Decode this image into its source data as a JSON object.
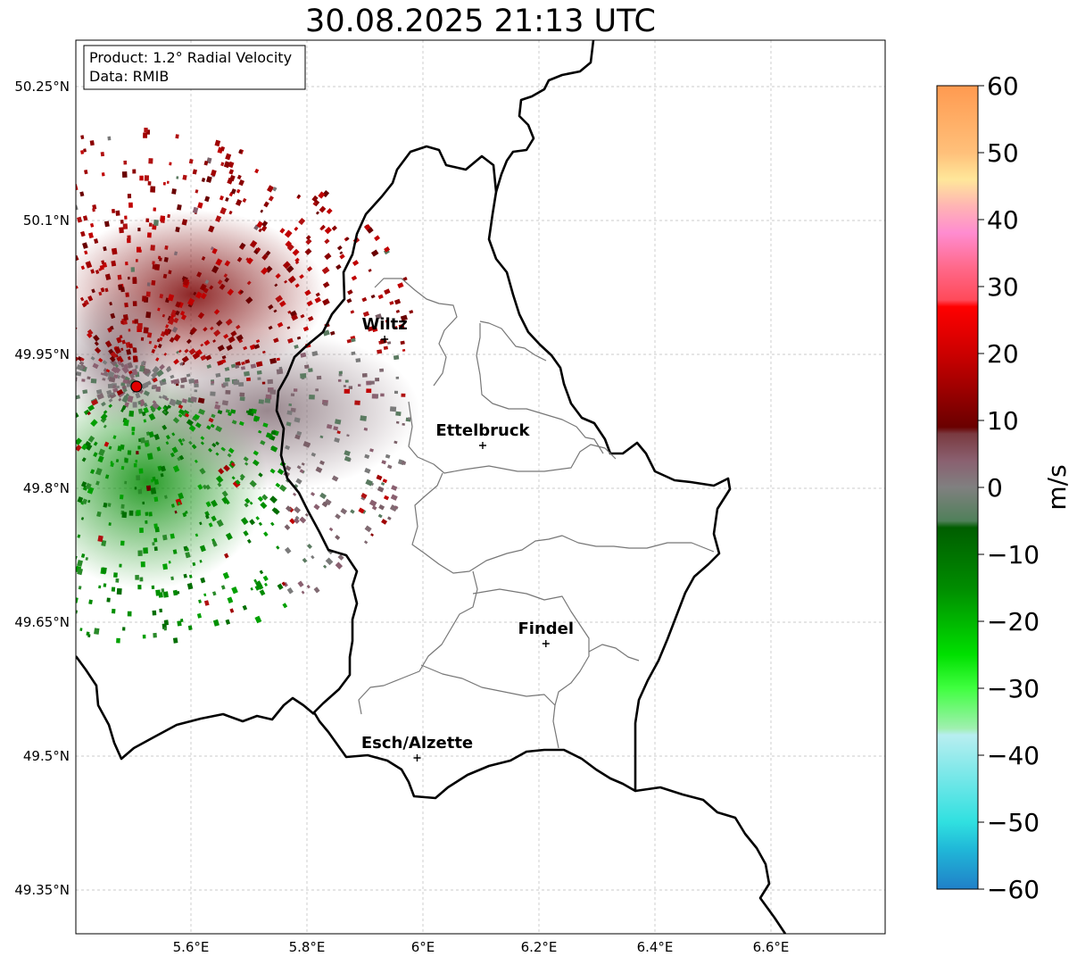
{
  "title": "30.08.2025 21:13 UTC",
  "info": {
    "product": "Product: 1.2° Radial Velocity",
    "source": "Data: RMIB"
  },
  "axes": {
    "lon_ticks": [
      {
        "value": 5.6,
        "label": "5.6°E"
      },
      {
        "value": 5.8,
        "label": "5.8°E"
      },
      {
        "value": 6.0,
        "label": "6°E"
      },
      {
        "value": 6.2,
        "label": "6.2°E"
      },
      {
        "value": 6.4,
        "label": "6.4°E"
      },
      {
        "value": 6.6,
        "label": "6.6°E"
      }
    ],
    "lat_ticks": [
      {
        "value": 50.25,
        "label": "50.25°N"
      },
      {
        "value": 50.1,
        "label": "50.1°N"
      },
      {
        "value": 49.95,
        "label": "49.95°N"
      },
      {
        "value": 49.8,
        "label": "49.8°N"
      },
      {
        "value": 49.65,
        "label": "49.65°N"
      },
      {
        "value": 49.5,
        "label": "49.5°N"
      },
      {
        "value": 49.35,
        "label": "49.35°N"
      }
    ],
    "lon_range": [
      5.4,
      6.8
    ],
    "lat_range": [
      49.3,
      50.3
    ],
    "grid": true
  },
  "cities": [
    {
      "name": "Wiltz",
      "lon": 5.934,
      "lat": 49.967
    },
    {
      "name": "Ettelbruck",
      "lon": 6.103,
      "lat": 49.848
    },
    {
      "name": "Findel",
      "lon": 6.212,
      "lat": 49.626
    },
    {
      "name": "Esch/Alzette",
      "lon": 5.99,
      "lat": 49.498
    }
  ],
  "radar_site": {
    "lon": 5.506,
    "lat": 49.914,
    "color": "#e00000"
  },
  "colorbar": {
    "label": "m/s",
    "min": -60,
    "max": 60,
    "tick_values": [
      60,
      50,
      40,
      30,
      20,
      10,
      0,
      -10,
      -20,
      -30,
      -40,
      -50,
      -60
    ],
    "tick_labels": [
      "60",
      "50",
      "40",
      "30",
      "20",
      "10",
      "0",
      "−10",
      "−20",
      "−30",
      "−40",
      "−50",
      "−60"
    ],
    "stops": [
      {
        "value": 60,
        "color": "#ff9a50"
      },
      {
        "value": 50,
        "color": "#ffc07a"
      },
      {
        "value": 46,
        "color": "#ffe79a"
      },
      {
        "value": 42,
        "color": "#ffb4b4"
      },
      {
        "value": 38,
        "color": "#ff8cd0"
      },
      {
        "value": 33,
        "color": "#ff6a8c"
      },
      {
        "value": 28,
        "color": "#ff4a5a"
      },
      {
        "value": 27,
        "color": "#ff0000"
      },
      {
        "value": 20,
        "color": "#cc0000"
      },
      {
        "value": 15,
        "color": "#a00000"
      },
      {
        "value": 9,
        "color": "#6a0000"
      },
      {
        "value": 8,
        "color": "#7a3a40"
      },
      {
        "value": 4,
        "color": "#8a6070"
      },
      {
        "value": 0,
        "color": "#808080"
      },
      {
        "value": -5,
        "color": "#50805a"
      },
      {
        "value": -6,
        "color": "#005e00"
      },
      {
        "value": -15,
        "color": "#008c00"
      },
      {
        "value": -25,
        "color": "#00e000"
      },
      {
        "value": -30,
        "color": "#40ff40"
      },
      {
        "value": -36,
        "color": "#a0f0b0"
      },
      {
        "value": -37,
        "color": "#b8eef0"
      },
      {
        "value": -50,
        "color": "#30e0e0"
      },
      {
        "value": -54,
        "color": "#20b8d8"
      },
      {
        "value": -60,
        "color": "#2080c8"
      }
    ]
  }
}
